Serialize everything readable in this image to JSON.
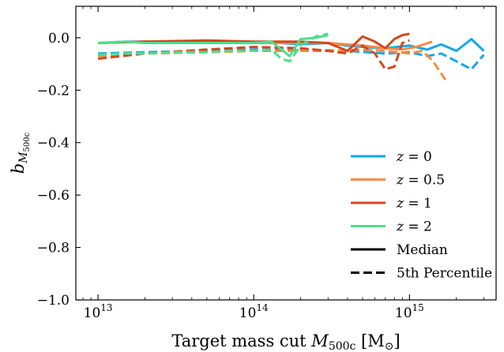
{
  "chart_data": {
    "type": "line",
    "xscale": "log",
    "xlim": [
      7200000000000.0,
      3600000000000000.0
    ],
    "ylim": [
      -1.0,
      0.12
    ],
    "xlabel": {
      "prefix": "Target mass cut ",
      "var": "M",
      "sub": "500c",
      "suffix": " [M",
      "sun": "⊙",
      "close": "]"
    },
    "ylabel": {
      "var": "b",
      "sub": "M",
      "subsub": "500c"
    },
    "xticks_major": [
      {
        "value": 10000000000000.0,
        "base": "10",
        "exp": "13"
      },
      {
        "value": 100000000000000.0,
        "base": "10",
        "exp": "14"
      },
      {
        "value": 1000000000000000.0,
        "base": "10",
        "exp": "15"
      }
    ],
    "yticks": [
      {
        "value": 0.0,
        "label": "0.0"
      },
      {
        "value": -0.2,
        "label": "−0.2"
      },
      {
        "value": -0.4,
        "label": "−0.4"
      },
      {
        "value": -0.6,
        "label": "−0.6"
      },
      {
        "value": -0.8,
        "label": "−0.8"
      },
      {
        "value": -1.0,
        "label": "−1.0"
      }
    ],
    "grid": false,
    "legend_position": "lower-right",
    "series": [
      {
        "name": "z=0",
        "redshift": "0",
        "color": "#13a8ea",
        "style": "median",
        "x": [
          10000000000000.0,
          15000000000000.0,
          20000000000000.0,
          30000000000000.0,
          50000000000000.0,
          70000000000000.0,
          100000000000000.0,
          150000000000000.0,
          200000000000000.0,
          300000000000000.0,
          400000000000000.0,
          500000000000000.0,
          700000000000000.0,
          1000000000000000.0,
          1300000000000000.0,
          1600000000000000.0,
          2000000000000000.0,
          2500000000000000.0,
          3000000000000000.0
        ],
        "y": [
          -0.02,
          -0.015,
          -0.015,
          -0.02,
          -0.015,
          -0.02,
          -0.02,
          -0.02,
          -0.025,
          -0.02,
          -0.03,
          -0.035,
          -0.04,
          -0.03,
          -0.045,
          -0.025,
          -0.05,
          -0.005,
          -0.05
        ]
      },
      {
        "name": "z=0",
        "redshift": "0",
        "color": "#13a8ea",
        "style": "percentile",
        "x": [
          10000000000000.0,
          20000000000000.0,
          50000000000000.0,
          100000000000000.0,
          200000000000000.0,
          400000000000000.0,
          700000000000000.0,
          1000000000000000.0,
          1300000000000000.0,
          1600000000000000.0,
          2000000000000000.0,
          2500000000000000.0,
          3000000000000000.0
        ],
        "y": [
          -0.06,
          -0.055,
          -0.05,
          -0.045,
          -0.045,
          -0.05,
          -0.06,
          -0.055,
          -0.07,
          -0.06,
          -0.09,
          -0.12,
          -0.065
        ]
      },
      {
        "name": "z=0.5",
        "redshift": "0.5",
        "color": "#f98a43",
        "style": "median",
        "x": [
          10000000000000.0,
          20000000000000.0,
          50000000000000.0,
          100000000000000.0,
          200000000000000.0,
          300000000000000.0,
          500000000000000.0,
          700000000000000.0,
          900000000000000.0,
          1100000000000000.0,
          1400000000000000.0
        ],
        "y": [
          -0.02,
          -0.015,
          -0.015,
          -0.02,
          -0.02,
          -0.02,
          -0.03,
          -0.04,
          -0.045,
          -0.035,
          -0.015
        ]
      },
      {
        "name": "z=0.5",
        "redshift": "0.5",
        "color": "#f98a43",
        "style": "percentile",
        "x": [
          10000000000000.0,
          20000000000000.0,
          50000000000000.0,
          100000000000000.0,
          200000000000000.0,
          300000000000000.0,
          500000000000000.0,
          700000000000000.0,
          1000000000000000.0,
          1200000000000000.0,
          1400000000000000.0,
          1700000000000000.0
        ],
        "y": [
          -0.07,
          -0.06,
          -0.055,
          -0.05,
          -0.05,
          -0.05,
          -0.045,
          -0.05,
          -0.06,
          -0.05,
          -0.085,
          -0.16
        ]
      },
      {
        "name": "z=1",
        "redshift": "1",
        "color": "#d2491d",
        "style": "median",
        "x": [
          10000000000000.0,
          20000000000000.0,
          50000000000000.0,
          100000000000000.0,
          200000000000000.0,
          300000000000000.0,
          400000000000000.0,
          500000000000000.0,
          600000000000000.0,
          700000000000000.0,
          800000000000000.0,
          900000000000000.0,
          1000000000000000.0
        ],
        "y": [
          -0.02,
          -0.015,
          -0.01,
          -0.015,
          -0.015,
          -0.02,
          -0.05,
          0.005,
          -0.015,
          -0.04,
          -0.005,
          0.01,
          0.015
        ]
      },
      {
        "name": "z=1",
        "redshift": "1",
        "color": "#d2491d",
        "style": "percentile",
        "x": [
          10000000000000.0,
          20000000000000.0,
          50000000000000.0,
          100000000000000.0,
          200000000000000.0,
          300000000000000.0,
          400000000000000.0,
          500000000000000.0,
          600000000000000.0,
          700000000000000.0,
          800000000000000.0,
          900000000000000.0,
          1000000000000000.0
        ],
        "y": [
          -0.08,
          -0.06,
          -0.045,
          -0.035,
          -0.04,
          -0.05,
          -0.06,
          -0.03,
          -0.06,
          -0.12,
          -0.11,
          -0.02,
          -0.01
        ]
      },
      {
        "name": "z=2",
        "redshift": "2",
        "color": "#4ddf8b",
        "style": "median",
        "x": [
          10000000000000.0,
          15000000000000.0,
          20000000000000.0,
          30000000000000.0,
          50000000000000.0,
          70000000000000.0,
          100000000000000.0,
          130000000000000.0,
          170000000000000.0,
          200000000000000.0,
          250000000000000.0,
          300000000000000.0
        ],
        "y": [
          -0.02,
          -0.015,
          -0.02,
          -0.02,
          -0.02,
          -0.02,
          -0.02,
          -0.015,
          -0.07,
          -0.005,
          0.0,
          0.01
        ]
      },
      {
        "name": "z=2",
        "redshift": "2",
        "color": "#4ddf8b",
        "style": "percentile",
        "x": [
          10000000000000.0,
          15000000000000.0,
          20000000000000.0,
          30000000000000.0,
          50000000000000.0,
          70000000000000.0,
          100000000000000.0,
          130000000000000.0,
          150000000000000.0,
          170000000000000.0,
          200000000000000.0,
          250000000000000.0,
          300000000000000.0
        ],
        "y": [
          -0.065,
          -0.06,
          -0.06,
          -0.055,
          -0.055,
          -0.05,
          -0.05,
          -0.045,
          -0.08,
          -0.09,
          -0.03,
          0.005,
          0.015
        ]
      }
    ],
    "legend": [
      {
        "kind": "color",
        "var": "z",
        "eq": " = ",
        "value": "0",
        "color": "#13a8ea"
      },
      {
        "kind": "color",
        "var": "z",
        "eq": " = ",
        "value": "0.5",
        "color": "#f98a43"
      },
      {
        "kind": "color",
        "var": "z",
        "eq": " = ",
        "value": "1",
        "color": "#d2491d"
      },
      {
        "kind": "color",
        "var": "z",
        "eq": " = ",
        "value": "2",
        "color": "#4ddf8b"
      },
      {
        "kind": "style",
        "label": "Median",
        "style": "median",
        "color": "#000000"
      },
      {
        "kind": "style",
        "label": "5th Percentile",
        "style": "percentile",
        "color": "#000000"
      }
    ]
  }
}
